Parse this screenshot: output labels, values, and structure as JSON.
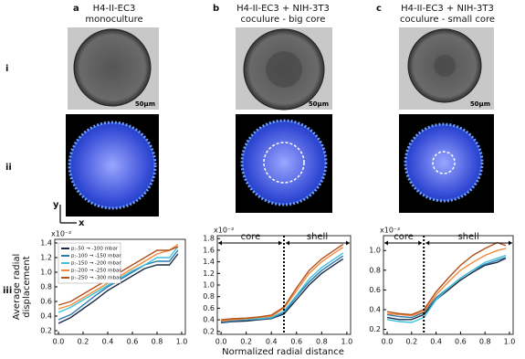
{
  "panels": [
    {
      "letter": "a",
      "title": [
        "H4-II-EC3",
        "monoculture"
      ]
    },
    {
      "letter": "b",
      "title": [
        "H4-II-EC3 + NIH-3T3",
        "coculure - big core"
      ]
    },
    {
      "letter": "c",
      "title": [
        "H4-II-EC3 + NIH-3T3",
        "coculure - small core"
      ]
    }
  ],
  "rows": [
    "i",
    "ii",
    "iii"
  ],
  "scale_bar": "50μm",
  "axes_labels": {
    "y": "y",
    "x": "x"
  },
  "xlabel": "Normalized radial distance",
  "chart_data": [
    {
      "type": "line",
      "ylabel": [
        "Average radial",
        "displacement"
      ],
      "multiplier": "x10⁻²",
      "x": [
        0,
        0.1,
        0.2,
        0.3,
        0.4,
        0.5,
        0.6,
        0.7,
        0.8,
        0.9,
        0.97
      ],
      "xlim": [
        -0.03,
        1.03
      ],
      "ylim": [
        0.15,
        1.45
      ],
      "xticks": [
        {
          "value": 0,
          "label": "0.0"
        },
        0.2,
        0.4,
        0.6,
        0.8,
        {
          "value": 1,
          "label": "1.0"
        }
      ],
      "yticks": [
        0.2,
        0.4,
        0.6,
        0.8,
        {
          "value": 1,
          "label": "1.0"
        },
        1.2,
        1.4
      ],
      "legend": "upper left",
      "series": [
        {
          "name": "p:-50 → -100 mbar",
          "color": "#1b2b44",
          "values": [
            0.3,
            0.38,
            0.5,
            0.62,
            0.75,
            0.85,
            0.95,
            1.05,
            1.1,
            1.1,
            1.25
          ]
        },
        {
          "name": "p:-100 → -150 mbar",
          "color": "#2b78b4",
          "values": [
            0.35,
            0.42,
            0.55,
            0.68,
            0.8,
            0.9,
            1.0,
            1.1,
            1.15,
            1.15,
            1.3
          ]
        },
        {
          "name": "p:-150 → -200 mbar",
          "color": "#3fc2d8",
          "values": [
            0.45,
            0.52,
            0.62,
            0.72,
            0.82,
            0.92,
            1.02,
            1.1,
            1.2,
            1.2,
            1.35
          ]
        },
        {
          "name": "p:-200 → -250 mbar",
          "color": "#f08a3c",
          "values": [
            0.5,
            0.55,
            0.65,
            0.75,
            0.85,
            0.95,
            1.05,
            1.15,
            1.25,
            1.3,
            1.38
          ]
        },
        {
          "name": "p:-250 → -300 mbar",
          "color": "#b4501c",
          "values": [
            0.55,
            0.6,
            0.7,
            0.8,
            0.9,
            1.0,
            1.1,
            1.2,
            1.3,
            1.3,
            1.35
          ]
        }
      ]
    },
    {
      "type": "line",
      "multiplier": "x10⁻²",
      "core": "core",
      "shell": "shell",
      "boundary": 0.5,
      "x": [
        0,
        0.1,
        0.2,
        0.3,
        0.4,
        0.5,
        0.6,
        0.7,
        0.8,
        0.9,
        0.97
      ],
      "xlim": [
        -0.03,
        1.03
      ],
      "ylim": [
        0.15,
        1.85
      ],
      "xticks": [
        {
          "value": 0,
          "label": "0.0"
        },
        0.2,
        0.4,
        0.6,
        0.8,
        {
          "value": 1,
          "label": "1.0"
        }
      ],
      "yticks": [
        0.2,
        0.4,
        0.6,
        0.8,
        {
          "value": 1,
          "label": "1.0"
        },
        1.2,
        1.4,
        1.6,
        1.8
      ],
      "series": [
        {
          "color": "#1b2b44",
          "values": [
            0.35,
            0.37,
            0.38,
            0.4,
            0.42,
            0.5,
            0.75,
            1.0,
            1.2,
            1.35,
            1.45
          ]
        },
        {
          "color": "#2b78b4",
          "values": [
            0.36,
            0.38,
            0.4,
            0.41,
            0.43,
            0.52,
            0.8,
            1.05,
            1.25,
            1.4,
            1.5
          ]
        },
        {
          "color": "#3fc2d8",
          "values": [
            0.38,
            0.4,
            0.41,
            0.42,
            0.44,
            0.55,
            0.82,
            1.1,
            1.3,
            1.45,
            1.55
          ]
        },
        {
          "color": "#f08a3c",
          "values": [
            0.38,
            0.4,
            0.42,
            0.44,
            0.46,
            0.6,
            0.9,
            1.2,
            1.4,
            1.55,
            1.65
          ]
        },
        {
          "color": "#b4501c",
          "values": [
            0.4,
            0.42,
            0.43,
            0.45,
            0.48,
            0.62,
            0.95,
            1.25,
            1.45,
            1.6,
            1.7
          ]
        }
      ]
    },
    {
      "type": "line",
      "multiplier": "x10⁻²",
      "core": "core",
      "shell": "shell",
      "boundary": 0.3,
      "x": [
        0,
        0.1,
        0.2,
        0.3,
        0.4,
        0.5,
        0.6,
        0.7,
        0.8,
        0.9,
        0.97
      ],
      "xlim": [
        -0.03,
        1.03
      ],
      "ylim": [
        0.15,
        1.15
      ],
      "xticks": [
        {
          "value": 0,
          "label": "0.0"
        },
        0.2,
        0.4,
        0.6,
        0.8,
        {
          "value": 1,
          "label": "1.0"
        }
      ],
      "yticks": [
        0.2,
        0.4,
        0.6,
        0.8,
        {
          "value": 1,
          "label": "1.0"
        }
      ],
      "series": [
        {
          "color": "#1b2b44",
          "values": [
            0.32,
            0.3,
            0.3,
            0.35,
            0.5,
            0.6,
            0.7,
            0.78,
            0.85,
            0.88,
            0.92
          ]
        },
        {
          "color": "#2b78b4",
          "values": [
            0.35,
            0.33,
            0.32,
            0.37,
            0.52,
            0.62,
            0.72,
            0.8,
            0.86,
            0.9,
            0.93
          ]
        },
        {
          "color": "#3fc2d8",
          "values": [
            0.3,
            0.28,
            0.27,
            0.32,
            0.5,
            0.62,
            0.72,
            0.8,
            0.88,
            0.92,
            0.95
          ]
        },
        {
          "color": "#f08a3c",
          "values": [
            0.36,
            0.35,
            0.34,
            0.38,
            0.55,
            0.68,
            0.8,
            0.88,
            0.95,
            1.0,
            1.02
          ]
        },
        {
          "color": "#b4501c",
          "values": [
            0.38,
            0.36,
            0.35,
            0.4,
            0.58,
            0.72,
            0.85,
            0.95,
            1.02,
            1.08,
            1.05
          ]
        }
      ]
    }
  ]
}
